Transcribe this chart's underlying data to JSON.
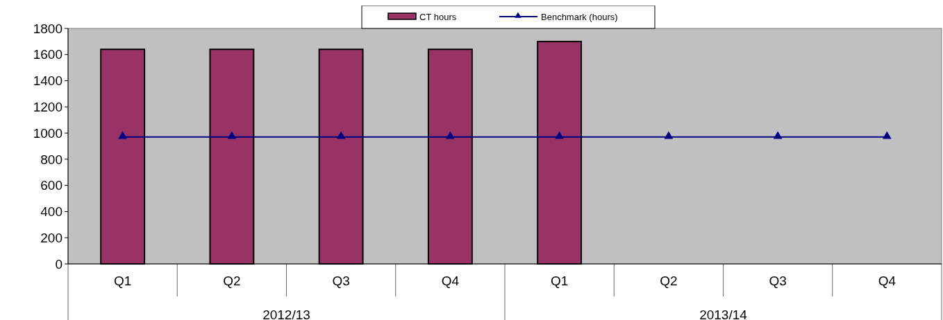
{
  "chart_data": {
    "type": "bar",
    "categories": [
      "Q1",
      "Q2",
      "Q3",
      "Q4",
      "Q1",
      "Q2",
      "Q3",
      "Q4"
    ],
    "series": [
      {
        "name": "CT hours",
        "color": "#993366",
        "values": [
          1640,
          1640,
          1640,
          1640,
          1700,
          null,
          null,
          null
        ]
      },
      {
        "name": "Benchmark (hours)",
        "type": "line",
        "color": "#000080",
        "marker": "triangle",
        "values": [
          970,
          970,
          970,
          970,
          970,
          970,
          970,
          970
        ]
      }
    ],
    "ylim": [
      0,
      1800
    ],
    "yticks": [
      0,
      200,
      400,
      600,
      800,
      1000,
      1200,
      1400,
      1600,
      1800
    ],
    "grid": false,
    "legend": "top",
    "annotations": [
      "2012/13",
      "2013/14"
    ]
  }
}
